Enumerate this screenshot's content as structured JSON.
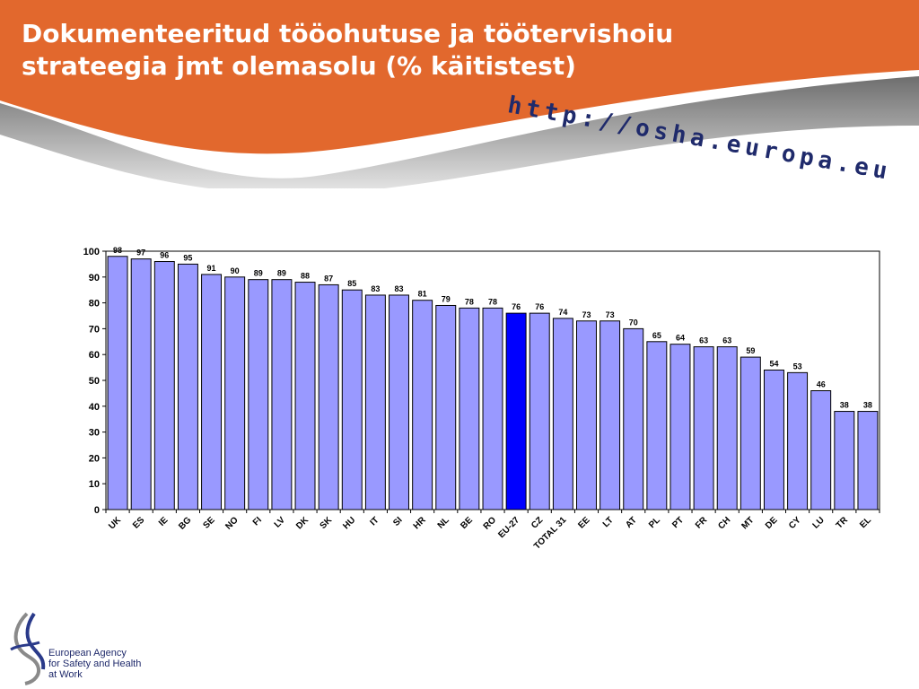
{
  "slide": {
    "title": "Dokumenteeritud tööohutuse ja töötervishoiu strateegia jmt olemasolu (% käitistest)",
    "url": "http://osha.europa.eu",
    "logo_lines": [
      "European Agency",
      "for Safety and Health",
      "at Work"
    ]
  },
  "colors": {
    "banner": "#e2682d",
    "bar": "#9999ff",
    "highlight_bar": "#0000ff",
    "url_text": "#1f2a6b"
  },
  "chart_data": {
    "type": "bar",
    "categories": [
      "UK",
      "ES",
      "IE",
      "BG",
      "SE",
      "NO",
      "FI",
      "LV",
      "DK",
      "SK",
      "HU",
      "IT",
      "SI",
      "HR",
      "NL",
      "BE",
      "RO",
      "EU-27",
      "CZ",
      "TOTAL 31",
      "EE",
      "LT",
      "AT",
      "PL",
      "PT",
      "FR",
      "CH",
      "MT",
      "DE",
      "CY",
      "LU",
      "TR",
      "EL"
    ],
    "values": [
      98,
      97,
      96,
      95,
      91,
      90,
      89,
      89,
      88,
      87,
      85,
      83,
      83,
      81,
      79,
      78,
      78,
      76,
      76,
      74,
      73,
      73,
      70,
      65,
      64,
      63,
      63,
      59,
      54,
      53,
      46,
      38,
      38
    ],
    "highlight": "EU-27",
    "ylim": [
      0,
      100
    ],
    "yticks": [
      0,
      10,
      20,
      30,
      40,
      50,
      60,
      70,
      80,
      90,
      100
    ],
    "grid": false,
    "legend": "none",
    "data_labels": true
  }
}
